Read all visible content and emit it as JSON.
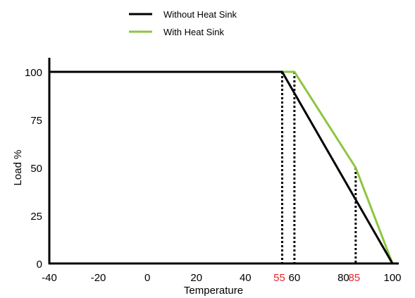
{
  "chart_data": {
    "type": "line",
    "title": "",
    "xlabel": "Temperature",
    "ylabel": "Load %",
    "xlim": [
      -40,
      100
    ],
    "ylim": [
      0,
      100
    ],
    "x_ticks": [
      "-40",
      "-20",
      "0",
      "20",
      "40",
      "60",
      "80",
      "100"
    ],
    "x_ticks_highlighted": [
      "55",
      "85"
    ],
    "y_ticks": [
      "0",
      "25",
      "50",
      "75",
      "100"
    ],
    "grid": false,
    "legend_position": "top-center",
    "series": [
      {
        "name": "Without Heat Sink",
        "color": "#000000",
        "x": [
          -40,
          55,
          100
        ],
        "y": [
          100,
          100,
          0
        ]
      },
      {
        "name": "With Heat Sink",
        "color": "#8cc63f",
        "x": [
          55,
          60,
          85,
          100
        ],
        "y": [
          100,
          100,
          50,
          0
        ]
      }
    ],
    "reference_lines": [
      {
        "x": 55,
        "y_top": 100
      },
      {
        "x": 60,
        "y_top": 100
      },
      {
        "x": 85,
        "y_top": 50
      }
    ]
  }
}
